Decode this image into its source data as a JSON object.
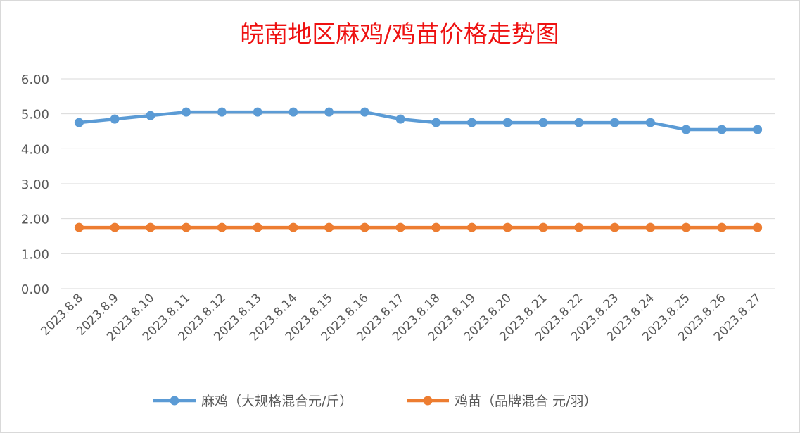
{
  "chart_data": {
    "type": "line",
    "title": "皖南地区麻鸡/鸡苗价格走势图",
    "xlabel": "",
    "ylabel": "",
    "categories": [
      "2023.8.8",
      "2023.8.9",
      "2023.8.10",
      "2023.8.11",
      "2023.8.12",
      "2023.8.13",
      "2023.8.14",
      "2023.8.15",
      "2023.8.16",
      "2023.8.17",
      "2023.8.18",
      "2023.8.19",
      "2023.8.20",
      "2023.8.21",
      "2023.8.22",
      "2023.8.23",
      "2023.8.24",
      "2023.8.25",
      "2023.8.26",
      "2023.8.27"
    ],
    "yticks": [
      "0.00",
      "1.00",
      "2.00",
      "3.00",
      "4.00",
      "5.00",
      "6.00"
    ],
    "ylim": [
      0,
      6
    ],
    "grid": true,
    "legend": "bottom",
    "series": [
      {
        "name": "麻鸡（大规格混合元/斤）",
        "color": "#5b9bd5",
        "values": [
          4.75,
          4.85,
          4.95,
          5.05,
          5.05,
          5.05,
          5.05,
          5.05,
          5.05,
          4.85,
          4.75,
          4.75,
          4.75,
          4.75,
          4.75,
          4.75,
          4.75,
          4.55,
          4.55,
          4.55
        ]
      },
      {
        "name": "鸡苗（品牌混合 元/羽）",
        "color": "#ed7d31",
        "values": [
          1.75,
          1.75,
          1.75,
          1.75,
          1.75,
          1.75,
          1.75,
          1.75,
          1.75,
          1.75,
          1.75,
          1.75,
          1.75,
          1.75,
          1.75,
          1.75,
          1.75,
          1.75,
          1.75,
          1.75
        ]
      }
    ]
  }
}
